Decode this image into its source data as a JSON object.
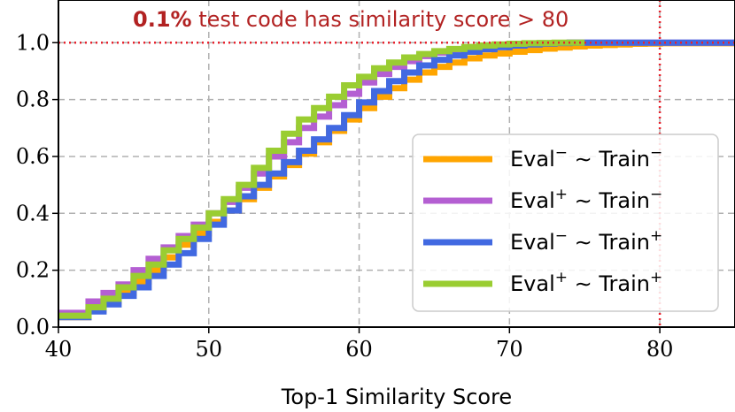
{
  "chart_data": {
    "type": "line",
    "title": "",
    "xlabel": "Top-1 Similarity Score",
    "ylabel": "",
    "xlim": [
      40,
      85
    ],
    "ylim": [
      0,
      1.15
    ],
    "xticks": [
      40,
      50,
      60,
      70,
      80
    ],
    "xtick_labels": [
      "40",
      "50",
      "60",
      "70",
      "80"
    ],
    "yticks": [
      0,
      0.2,
      0.4,
      0.6,
      0.8,
      1.0
    ],
    "ytick_labels": [
      "0.0",
      "0.2",
      "0.4",
      "0.6",
      "0.8",
      "1.0"
    ],
    "grid": true,
    "legend_position": "lower-right",
    "annotation": {
      "bold": "0.1%",
      "rest": " test code has similarity score > 80"
    },
    "reference_lines": {
      "hline_y": 1.0,
      "vline_x": 80,
      "color": "#e8222d"
    },
    "series": [
      {
        "name": "Eval− ∼ Train−",
        "label_main": "Eval",
        "label_sup1": "−",
        "label_mid": " ∼ Train",
        "label_sup2": "−",
        "color": "#ffa500",
        "x": [
          40,
          41,
          42,
          43,
          44,
          45,
          46,
          47,
          48,
          49,
          50,
          51,
          52,
          53,
          54,
          55,
          56,
          57,
          58,
          59,
          60,
          61,
          62,
          63,
          64,
          65,
          66,
          67,
          68,
          69,
          70,
          71,
          72,
          73,
          74,
          75,
          76,
          77,
          78,
          79,
          80,
          85
        ],
        "y": [
          0.035,
          0.035,
          0.06,
          0.09,
          0.12,
          0.16,
          0.2,
          0.245,
          0.29,
          0.33,
          0.37,
          0.41,
          0.45,
          0.49,
          0.53,
          0.57,
          0.61,
          0.65,
          0.69,
          0.73,
          0.77,
          0.81,
          0.84,
          0.87,
          0.895,
          0.915,
          0.93,
          0.945,
          0.955,
          0.962,
          0.968,
          0.974,
          0.979,
          0.983,
          0.987,
          0.99,
          0.992,
          0.994,
          0.996,
          0.997,
          0.998,
          1.0
        ]
      },
      {
        "name": "Eval+ ∼ Train−",
        "label_main": "Eval",
        "label_sup1": "+",
        "label_mid": " ∼ Train",
        "label_sup2": "−",
        "color": "#b45fd2",
        "x": [
          40,
          41,
          42,
          43,
          44,
          45,
          46,
          47,
          48,
          49,
          50,
          51,
          52,
          53,
          54,
          55,
          56,
          57,
          58,
          59,
          60,
          61,
          62,
          63,
          64,
          65,
          66,
          67,
          68,
          69,
          70,
          71,
          72,
          73,
          74,
          75,
          85
        ],
        "y": [
          0.05,
          0.05,
          0.09,
          0.12,
          0.15,
          0.2,
          0.24,
          0.28,
          0.32,
          0.36,
          0.4,
          0.44,
          0.49,
          0.54,
          0.6,
          0.65,
          0.7,
          0.74,
          0.78,
          0.82,
          0.86,
          0.89,
          0.915,
          0.935,
          0.953,
          0.965,
          0.975,
          0.982,
          0.988,
          0.992,
          0.995,
          0.997,
          0.998,
          0.999,
          1.0,
          1.0,
          1.0
        ]
      },
      {
        "name": "Eval− ∼ Train+",
        "label_main": "Eval",
        "label_sup1": "−",
        "label_mid": " ∼ Train",
        "label_sup2": "+",
        "color": "#4169e1",
        "x": [
          40,
          41,
          42,
          43,
          44,
          45,
          46,
          47,
          48,
          49,
          50,
          51,
          52,
          53,
          54,
          55,
          56,
          57,
          58,
          59,
          60,
          61,
          62,
          63,
          64,
          65,
          66,
          67,
          68,
          69,
          70,
          71,
          72,
          73,
          74,
          75,
          76,
          77,
          85
        ],
        "y": [
          0.035,
          0.035,
          0.055,
          0.08,
          0.11,
          0.14,
          0.18,
          0.22,
          0.26,
          0.31,
          0.36,
          0.41,
          0.46,
          0.5,
          0.54,
          0.58,
          0.62,
          0.66,
          0.7,
          0.745,
          0.79,
          0.83,
          0.865,
          0.895,
          0.92,
          0.94,
          0.955,
          0.968,
          0.977,
          0.984,
          0.99,
          0.994,
          0.997,
          0.999,
          1.0,
          1.0,
          1.0,
          1.0,
          1.0
        ]
      },
      {
        "name": "Eval+ ∼ Train+",
        "label_main": "Eval",
        "label_sup1": "+",
        "label_mid": " ∼ Train",
        "label_sup2": "+",
        "color": "#9acd32",
        "x": [
          40,
          41,
          42,
          43,
          44,
          45,
          46,
          47,
          48,
          49,
          50,
          51,
          52,
          53,
          54,
          55,
          56,
          57,
          58,
          59,
          60,
          61,
          62,
          63,
          64,
          65,
          66,
          67,
          68,
          69,
          70,
          71,
          72,
          73,
          74,
          75
        ],
        "y": [
          0.04,
          0.04,
          0.07,
          0.1,
          0.14,
          0.18,
          0.22,
          0.27,
          0.31,
          0.35,
          0.4,
          0.45,
          0.5,
          0.56,
          0.62,
          0.68,
          0.73,
          0.77,
          0.81,
          0.85,
          0.88,
          0.91,
          0.93,
          0.948,
          0.96,
          0.97,
          0.978,
          0.985,
          0.99,
          0.994,
          0.996,
          0.998,
          0.999,
          1.0,
          1.0,
          1.0
        ]
      }
    ]
  }
}
